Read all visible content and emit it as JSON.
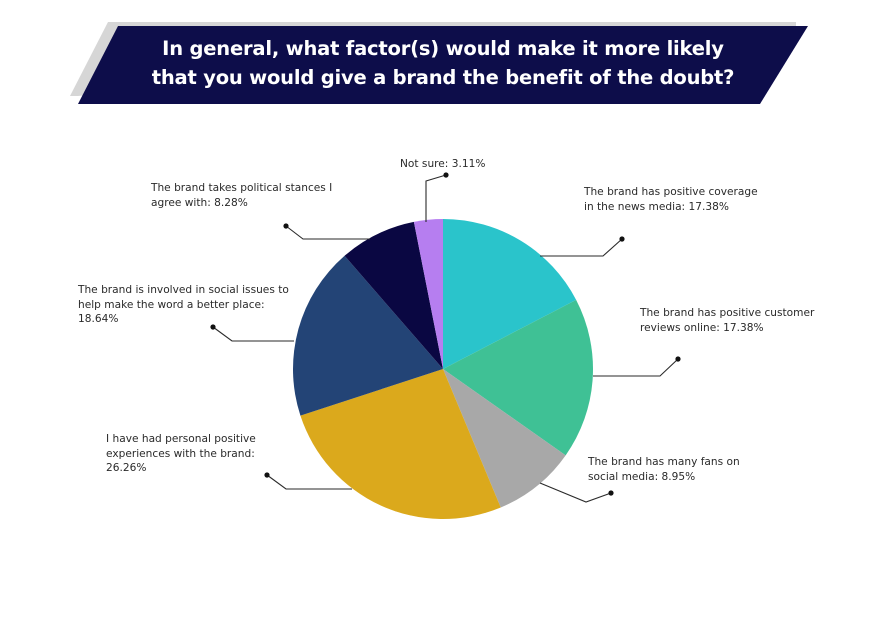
{
  "header": {
    "title_line1": "In general, what factor(s) would make it more likely",
    "title_line2": "that you would give a brand the benefit of the doubt?",
    "banner_color": "#0d0d4a",
    "shadow_color": "#d6d6d6"
  },
  "labels": {
    "not_sure": "Not sure: 3.11%",
    "political_line1": "The brand takes political stances I",
    "political_line2": "agree with: 8.28%",
    "news_line1": "The brand has positive coverage",
    "news_line2": "in the news media: 17.38%",
    "reviews_line1": "The brand has positive customer",
    "reviews_line2": "reviews online: 17.38%",
    "social_issues_line1": "The brand is involved in social issues to",
    "social_issues_line2": "help make the word a better place:",
    "social_issues_line3": "18.64%",
    "personal_line1": "I have had personal positive",
    "personal_line2": "experiences with the brand:",
    "personal_line3": "26.26%",
    "fans_line1": "The brand has many fans on",
    "fans_line2": "social media: 8.95%"
  },
  "chart_data": {
    "type": "pie",
    "title": "In general, what factor(s) would make it more likely that you would give a brand the benefit of the doubt?",
    "start_angle_deg": 0,
    "direction": "clockwise",
    "categories": [
      "The brand has positive coverage in the news media",
      "The brand has positive customer reviews online",
      "The brand has many fans on social media",
      "I have had personal positive experiences with the brand",
      "The brand is involved in social issues to help make the word a better place",
      "The brand takes political stances I agree with",
      "Not sure"
    ],
    "values": [
      17.38,
      17.38,
      8.95,
      26.26,
      18.64,
      8.28,
      3.11
    ],
    "unit": "%",
    "colors": [
      "#2ac4cb",
      "#3fc195",
      "#a8a8a8",
      "#dba91c",
      "#234476",
      "#0a0742",
      "#b67ef0"
    ],
    "legend": "none (direct labels with leader lines)"
  }
}
